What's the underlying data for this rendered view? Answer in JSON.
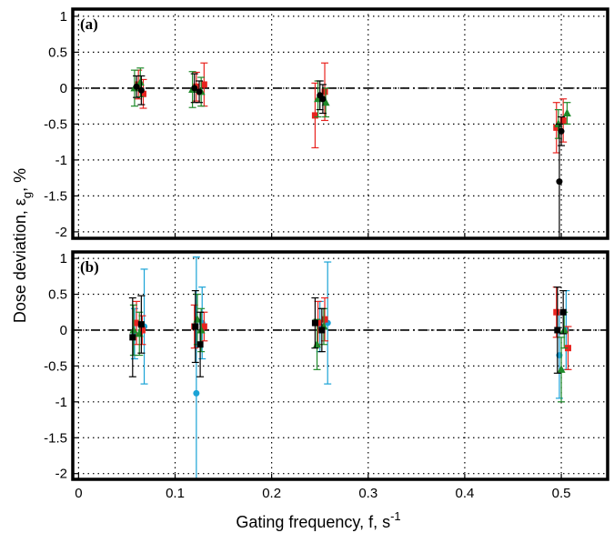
{
  "chart_data": [
    {
      "type": "scatter",
      "annotation": "(a)",
      "xlim": [
        -0.006,
        0.548
      ],
      "ylim": [
        -2.09,
        1.1
      ],
      "xticks": [
        0,
        0.1,
        0.2,
        0.3,
        0.4,
        0.5
      ],
      "yticks": [
        1,
        0.5,
        0,
        -0.5,
        -1,
        -1.5,
        -2
      ],
      "grid": true,
      "series": [
        {
          "color": "#e8231f",
          "marker": "square",
          "x": [
            0.062,
            0.067,
            0.122,
            0.13,
            0.245,
            0.255,
            0.495,
            0.502
          ],
          "values": [
            0.05,
            -0.08,
            0.02,
            0.05,
            -0.38,
            -0.05,
            -0.55,
            -0.45
          ],
          "errors": [
            0.2,
            0.2,
            0.2,
            0.3,
            0.45,
            0.4,
            0.35,
            0.3
          ]
        },
        {
          "color": "#1f8a2a",
          "marker": "triangle",
          "x": [
            0.058,
            0.064,
            0.118,
            0.127,
            0.248,
            0.256,
            0.497,
            0.506
          ],
          "values": [
            0,
            0.08,
            -0.02,
            -0.05,
            -0.15,
            -0.2,
            -0.5,
            -0.35
          ],
          "errors": [
            0.25,
            0.2,
            0.25,
            0.2,
            0.25,
            0.2,
            0.2,
            0.15
          ]
        },
        {
          "color": "#000000",
          "marker": "circle",
          "x": [
            0.06,
            0.065,
            0.12,
            0.125,
            0.25,
            0.253,
            0.498,
            0.5
          ],
          "values": [
            0.02,
            -0.03,
            0,
            -0.05,
            -0.1,
            -0.15,
            -1.3,
            -0.6
          ],
          "errors": [
            0.15,
            0.2,
            0.2,
            0.15,
            0.2,
            0.2,
            0.8,
            0.2
          ]
        }
      ]
    },
    {
      "type": "scatter",
      "annotation": "(b)",
      "xlabel": "Gating frequency,  f,  s",
      "xlabel_superscript": "-1",
      "ylabel": "Dose deviation, ε",
      "ylabel_subscript": "g",
      "ylabel_end": ", %",
      "xlim": [
        -0.006,
        0.548
      ],
      "ylim": [
        -2.08,
        1.09
      ],
      "xticks": [
        0,
        0.1,
        0.2,
        0.3,
        0.4,
        0.5
      ],
      "yticks": [
        1,
        0.5,
        0,
        -0.5,
        -1,
        -1.5,
        -2
      ],
      "grid": true,
      "series": [
        {
          "color": "#1aa3d6",
          "marker": "circle",
          "x": [
            0.058,
            0.068,
            0.122,
            0.128,
            0.25,
            0.258,
            0.498,
            0.505
          ],
          "values": [
            -0.05,
            0.05,
            -0.88,
            0.1,
            0.05,
            0.1,
            -0.35,
            0
          ],
          "errors": [
            0.35,
            0.8,
            1.9,
            0.5,
            0.35,
            0.85,
            0.6,
            0.55
          ]
        },
        {
          "color": "#e8231f",
          "marker": "square",
          "x": [
            0.06,
            0.066,
            0.12,
            0.13,
            0.248,
            0.255,
            0.495,
            0.507
          ],
          "values": [
            0.1,
            0,
            0.05,
            0.05,
            0.1,
            0.15,
            0.25,
            -0.25
          ],
          "errors": [
            0.3,
            0.2,
            0.3,
            0.2,
            0.3,
            0.3,
            0.35,
            0.3
          ]
        },
        {
          "color": "#1f8a2a",
          "marker": "triangle",
          "x": [
            0.057,
            0.063,
            0.123,
            0.127,
            0.247,
            0.254,
            0.5,
            0.503
          ],
          "values": [
            0,
            -0.05,
            0.15,
            0,
            -0.2,
            0.05,
            -0.55,
            0
          ],
          "errors": [
            0.35,
            0.3,
            0.35,
            0.3,
            0.35,
            0.25,
            0.45,
            0.25
          ]
        },
        {
          "color": "#000000",
          "marker": "square",
          "x": [
            0.056,
            0.065,
            0.121,
            0.126,
            0.245,
            0.252,
            0.496,
            0.502
          ],
          "values": [
            -0.1,
            0.08,
            0.05,
            -0.2,
            0.1,
            0,
            0,
            0.25
          ],
          "errors": [
            0.55,
            0.4,
            0.5,
            0.45,
            0.35,
            0.3,
            0.6,
            0.3
          ]
        }
      ]
    }
  ]
}
